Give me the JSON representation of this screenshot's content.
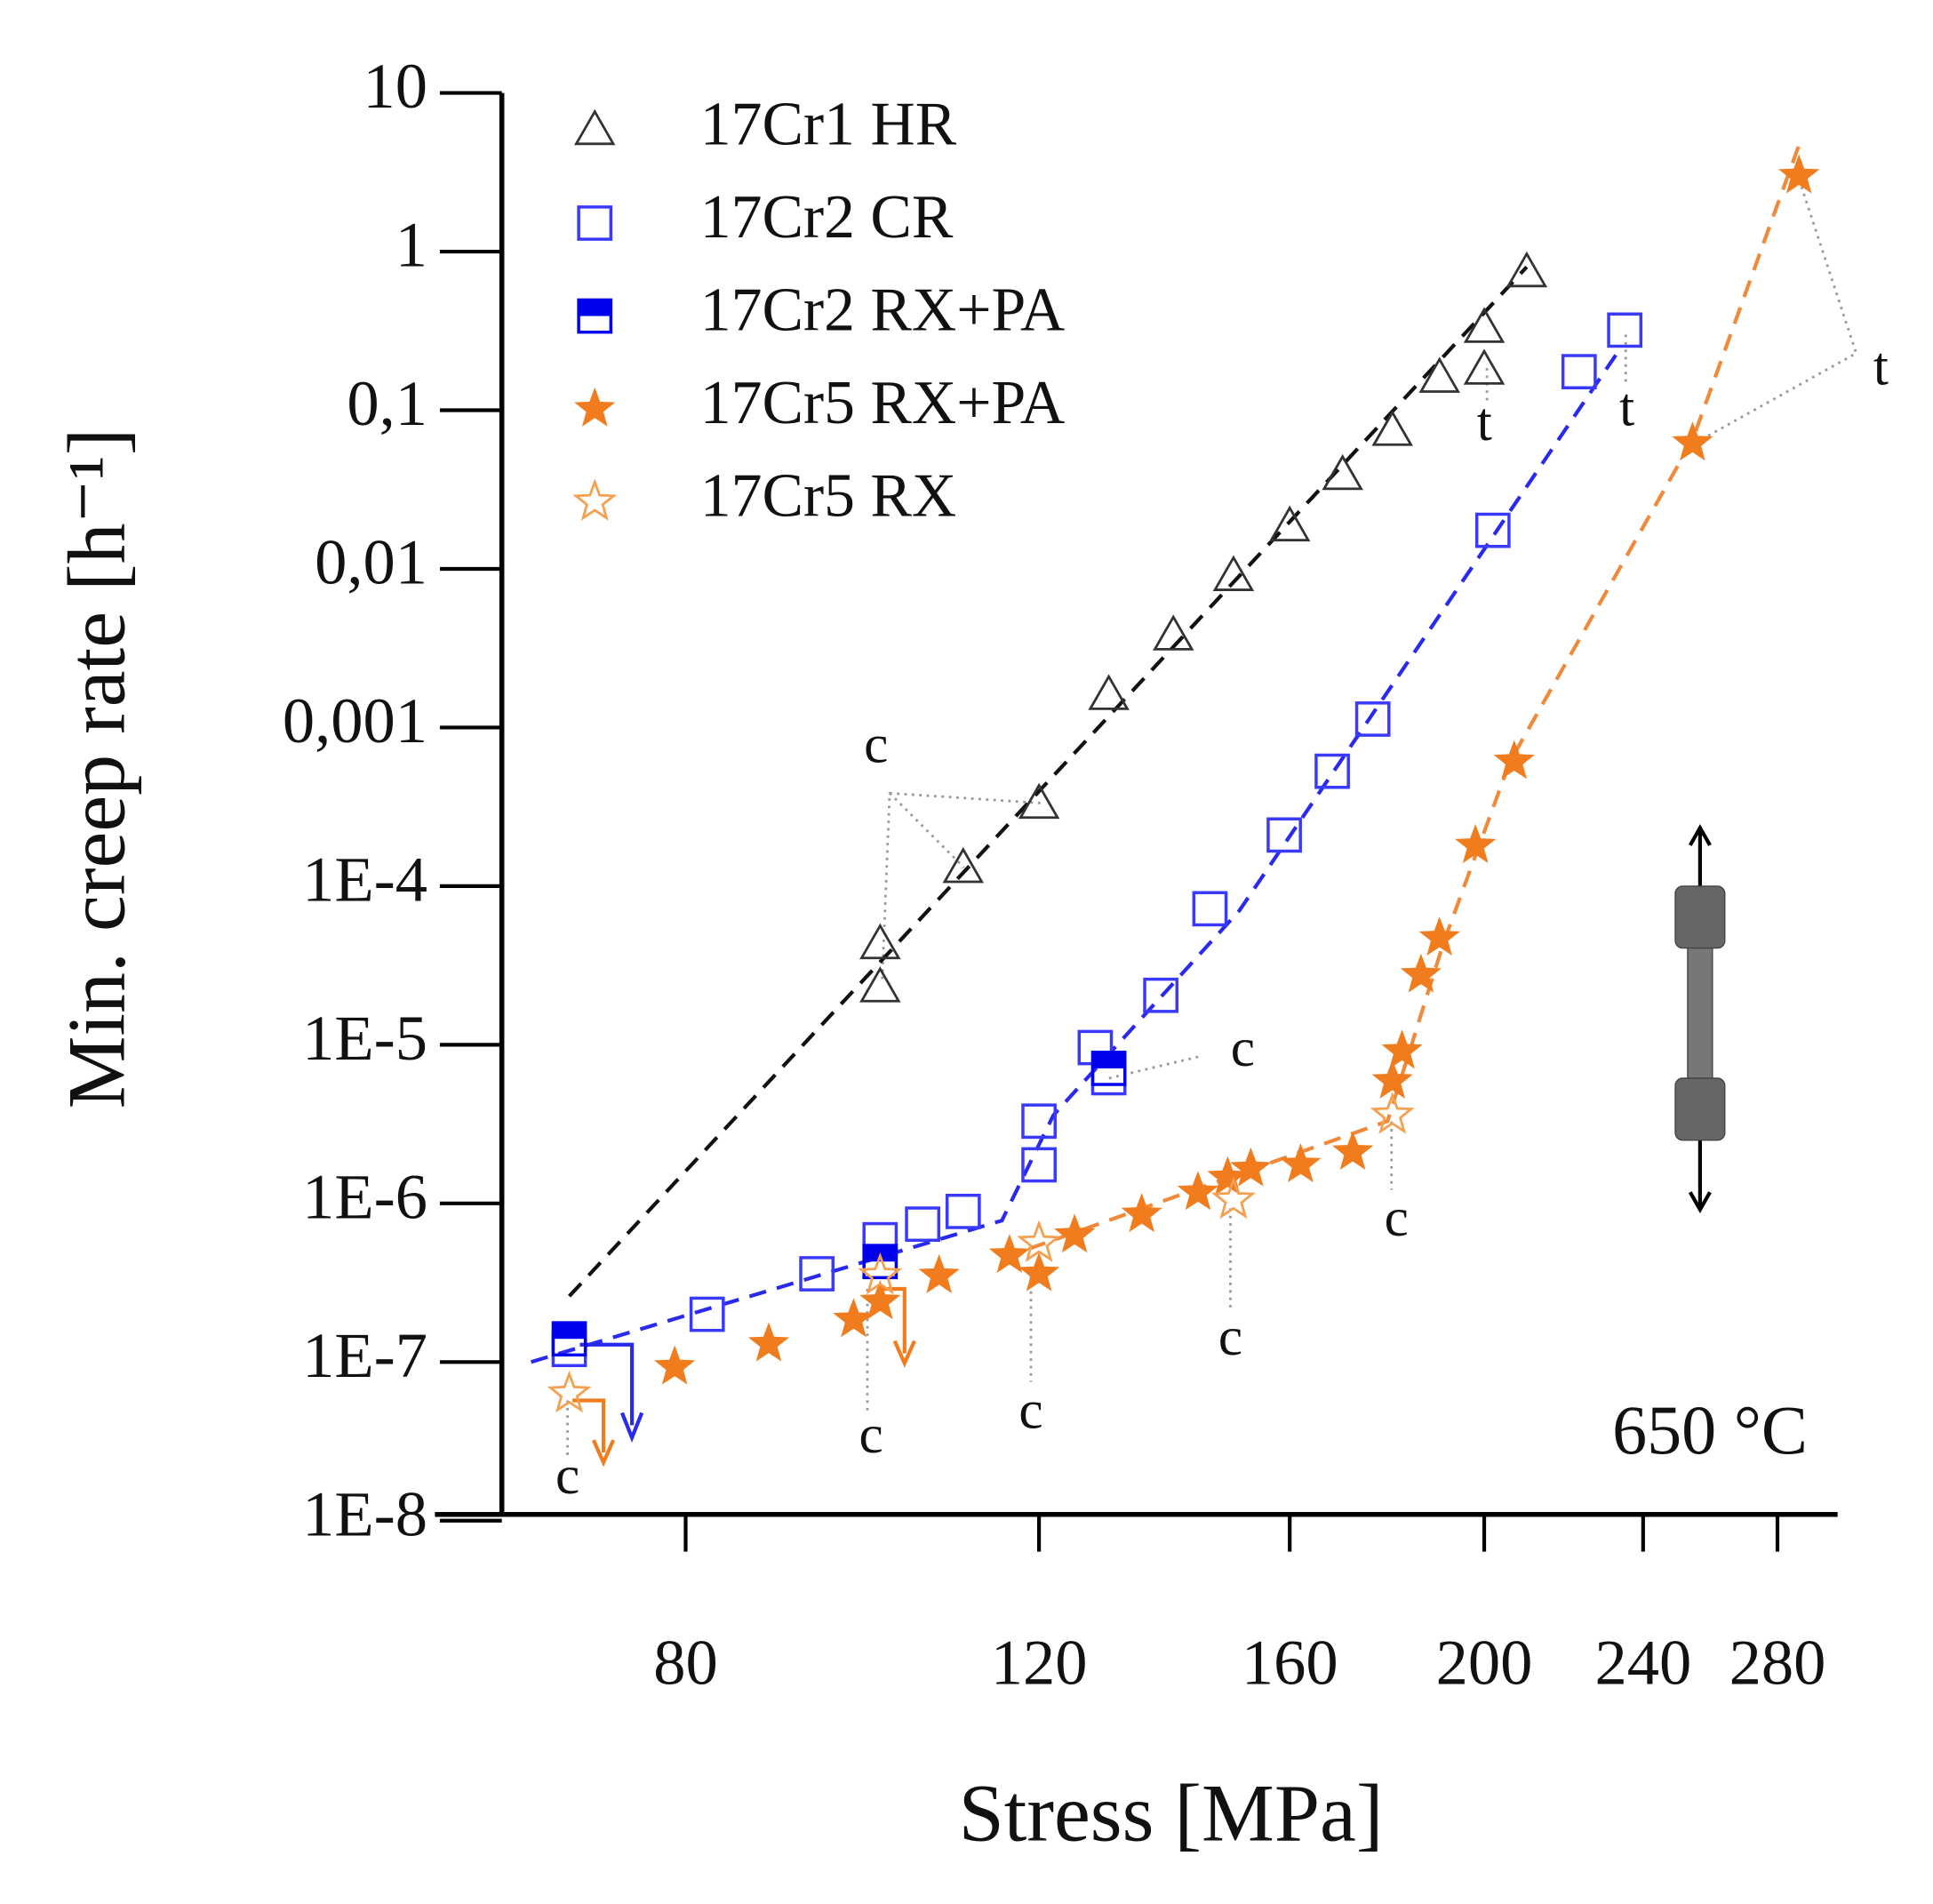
{
  "chart_data": {
    "type": "scatter",
    "x_label": "Stress [MPa]",
    "y_label": "Min. creep rate [h⁻¹]",
    "xscale": "log",
    "yscale": "log",
    "xlim": [
      60,
      300
    ],
    "xticks": [
      80,
      120,
      160,
      200,
      240,
      280
    ],
    "ylim": [
      1e-08,
      10
    ],
    "yticks": [
      {
        "value": 1e-08,
        "label": "1E-8"
      },
      {
        "value": 1e-07,
        "label": "1E-7"
      },
      {
        "value": 1e-06,
        "label": "1E-6"
      },
      {
        "value": 1e-05,
        "label": "1E-5"
      },
      {
        "value": 0.0001,
        "label": "1E-4"
      },
      {
        "value": 0.001,
        "label": "0,001"
      },
      {
        "value": 0.01,
        "label": "0,01"
      },
      {
        "value": 0.1,
        "label": "0,1"
      },
      1,
      10
    ],
    "series": [
      {
        "name": "17Cr1 HR",
        "color": "#333333",
        "marker": "triangle",
        "x": [
          100,
          100,
          110,
          120,
          130,
          140,
          150,
          160,
          170,
          180,
          190,
          200,
          200,
          210
        ],
        "values": [
          4.3e-05,
          2.3e-05,
          0.00013,
          0.00033,
          0.0016,
          0.0038,
          0.009,
          0.0185,
          0.039,
          0.074,
          0.16,
          0.18,
          0.33,
          0.74
        ]
      },
      {
        "name": "17Cr2 CR",
        "color": "#3a3aff",
        "marker": "square",
        "x": [
          70,
          82,
          93,
          100,
          105,
          110,
          120,
          120,
          128,
          130,
          138,
          146,
          159,
          168,
          176,
          202,
          223,
          235
        ],
        "values": [
          1.2e-07,
          2e-07,
          3.6e-07,
          5.9e-07,
          7.4e-07,
          8.9e-07,
          1.75e-06,
          3.3e-06,
          9.6e-06,
          6.2e-06,
          2.05e-05,
          7.2e-05,
          0.00021,
          0.00053,
          0.00113,
          0.0175,
          0.175,
          0.32
        ]
      },
      {
        "name": "17Cr2 RX+PA",
        "color": "#0000ee",
        "marker": "half-square",
        "x": [
          70,
          100,
          130
        ],
        "values": [
          1.4e-07,
          4.3e-07,
          7.1e-06
        ]
      },
      {
        "name": "17Cr5 RX+PA",
        "color": "#f07c1e",
        "marker": "star",
        "x": [
          79,
          88,
          97,
          100,
          107,
          116,
          120,
          125,
          135,
          144,
          149,
          153,
          162,
          172,
          180,
          182,
          186,
          190,
          198,
          207,
          254,
          287
        ],
        "values": [
          9.3e-08,
          1.3e-07,
          1.85e-07,
          2.4e-07,
          3.5e-07,
          4.7e-07,
          3.6e-07,
          6.3e-07,
          8.5e-07,
          1.17e-06,
          1.45e-06,
          1.65e-06,
          1.75e-06,
          2.1e-06,
          5.9e-06,
          9.1e-06,
          2.75e-05,
          4.7e-05,
          0.00018,
          0.00061,
          0.062,
          3.0
        ]
      },
      {
        "name": "17Cr5 RX",
        "color": "#f5a050",
        "marker": "star-open",
        "x": [
          70,
          100,
          120,
          150,
          180
        ],
        "values": [
          6.3e-08,
          3.5e-07,
          5.6e-07,
          1.05e-06,
          3.6e-06
        ]
      }
    ],
    "fit_lines": [
      {
        "color": "#111111",
        "x": [
          70,
          210
        ],
        "values": [
          2.6e-07,
          0.8
        ]
      },
      {
        "color": "#2a2aee",
        "x": [
          67,
          115,
          122,
          151,
          233
        ],
        "values": [
          1e-07,
          7.8e-07,
          3.6e-06,
          7e-05,
          0.23
        ]
      },
      {
        "color": "#f08a3a",
        "x": [
          115,
          179,
          191,
          206,
          254,
          288
        ],
        "values": [
          4.5e-07,
          3.3e-06,
          4.5e-05,
          0.00061,
          0.065,
          5.3
        ]
      }
    ],
    "annotations": [
      "c",
      "c",
      "c",
      "c",
      "c",
      "c",
      "c",
      "t",
      "t",
      "t",
      "650 °C"
    ]
  }
}
